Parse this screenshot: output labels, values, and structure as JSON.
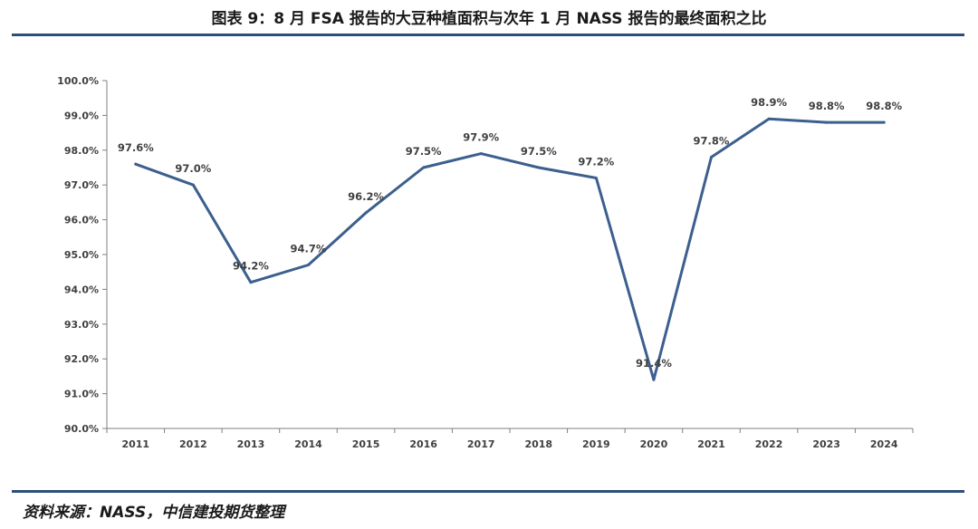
{
  "header": {
    "title": "图表 9：8 月 FSA 报告的大豆种植面积与次年 1 月 NASS 报告的最终面积之比"
  },
  "footer": {
    "source": "资料来源：NASS，中信建投期货整理"
  },
  "colors": {
    "line": "#3c5f8e",
    "rule": "#2e4e78",
    "axis": "#808080",
    "text": "#404040"
  },
  "chart_data": {
    "type": "line",
    "title": "",
    "xlabel": "",
    "ylabel": "",
    "categories": [
      "2011",
      "2012",
      "2013",
      "2014",
      "2015",
      "2016",
      "2017",
      "2018",
      "2019",
      "2020",
      "2021",
      "2022",
      "2023",
      "2024"
    ],
    "series": [
      {
        "values": [
          97.6,
          97.0,
          94.2,
          94.7,
          96.2,
          97.5,
          97.9,
          97.5,
          97.2,
          91.4,
          97.8,
          98.9,
          98.8,
          98.8
        ],
        "labels": [
          "97.6%",
          "97.0%",
          "94.2%",
          "94.7%",
          "96.2%",
          "97.5%",
          "97.9%",
          "97.5%",
          "97.2%",
          "91.4%",
          "97.8%",
          "98.9%",
          "98.8%",
          "98.8%"
        ]
      }
    ],
    "ylim": [
      90.0,
      100.0
    ],
    "yticks": [
      "90.0%",
      "91.0%",
      "92.0%",
      "93.0%",
      "94.0%",
      "95.0%",
      "96.0%",
      "97.0%",
      "98.0%",
      "99.0%",
      "100.0%"
    ],
    "grid": false,
    "legend": "none"
  }
}
